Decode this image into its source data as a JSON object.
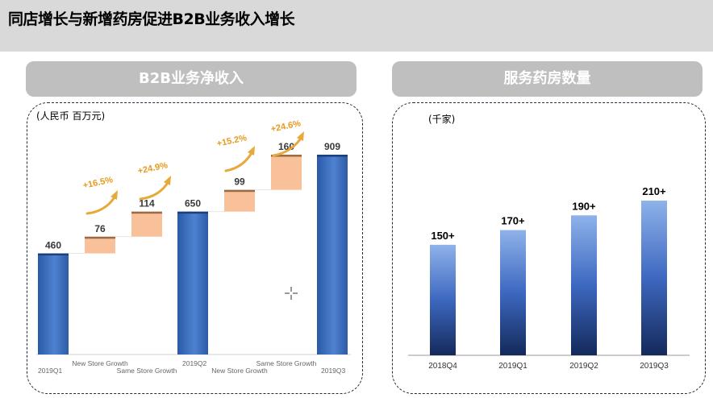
{
  "header": {
    "title": "同店增长与新增药房促进B2B业务收入增长"
  },
  "left_panel": {
    "title": "B2B业务净收入",
    "unit": "(人民币 百万元)"
  },
  "right_panel": {
    "title": "服务药房数量",
    "unit": "(千家)"
  },
  "colors": {
    "total_bar": "#3d6fbf",
    "growth_bar": "#f8c199",
    "arrow": "#e8a83a",
    "growth_text": "#e79a1d"
  },
  "chart_data": [
    {
      "type": "bar",
      "subtype": "waterfall",
      "title": "B2B业务净收入",
      "ylabel": "(人民币 百万元)",
      "ylim": [
        0,
        909
      ],
      "bars": [
        {
          "label": "2019Q1",
          "value": 460,
          "kind": "total",
          "base": 0
        },
        {
          "label": "New Store Growth",
          "value": 76,
          "kind": "increment",
          "base": 460
        },
        {
          "label": "Same Store Growth",
          "value": 114,
          "kind": "increment",
          "base": 536
        },
        {
          "label": "2019Q2",
          "value": 650,
          "kind": "total",
          "base": 0
        },
        {
          "label": "New Store Growth",
          "value": 99,
          "kind": "increment",
          "base": 650
        },
        {
          "label": "Same Store Growth",
          "value": 160,
          "kind": "increment",
          "base": 749
        },
        {
          "label": "2019Q3",
          "value": 909,
          "kind": "total",
          "base": 0
        }
      ],
      "annotations": [
        "+16.5%",
        "+24.9%",
        "+15.2%",
        "+24.6%"
      ]
    },
    {
      "type": "bar",
      "title": "服务药房数量",
      "ylabel": "(千家)",
      "categories": [
        "2018Q4",
        "2019Q1",
        "2019Q2",
        "2019Q3"
      ],
      "values": [
        150,
        170,
        190,
        210
      ],
      "value_labels": [
        "150+",
        "170+",
        "190+",
        "210+"
      ],
      "ylim": [
        0,
        210
      ]
    }
  ]
}
